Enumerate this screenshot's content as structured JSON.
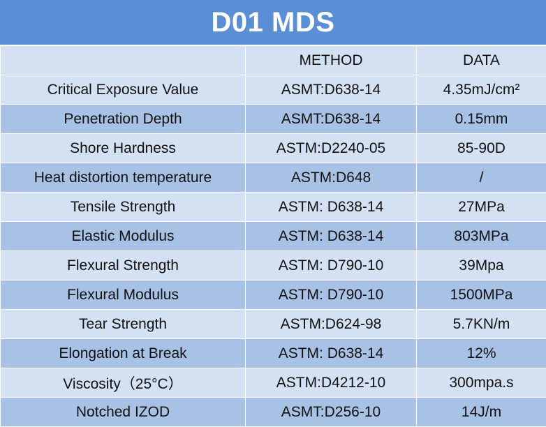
{
  "title": "D01 MDS",
  "header": {
    "property": "",
    "method": "METHOD",
    "data": "DATA"
  },
  "rows": [
    {
      "property": "Critical Exposure Value",
      "method": "ASMT:D638-14",
      "data": "4.35mJ/cm²"
    },
    {
      "property": "Penetration Depth",
      "method": "ASMT:D638-14",
      "data": "0.15mm"
    },
    {
      "property": "Shore Hardness",
      "method": "ASTM:D2240-05",
      "data": "85-90D"
    },
    {
      "property": "Heat distortion temperature",
      "method": "ASTM:D648",
      "data": "/"
    },
    {
      "property": "Tensile Strength",
      "method": "ASTM: D638-14",
      "data": "27MPa"
    },
    {
      "property": "Elastic Modulus",
      "method": "ASTM: D638-14",
      "data": "803MPa"
    },
    {
      "property": "Flexural Strength",
      "method": "ASTM: D790-10",
      "data": "39Mpa"
    },
    {
      "property": "Flexural Modulus",
      "method": "ASTM: D790-10",
      "data": "1500MPa"
    },
    {
      "property": "Tear Strength",
      "method": "ASTM:D624-98",
      "data": "5.7KN/m"
    },
    {
      "property": "Elongation at Break",
      "method": "ASTM: D638-14",
      "data": "12%"
    },
    {
      "property": "Viscosity（25°C）",
      "method": "ASTM:D4212-10",
      "data": "300mpa.s"
    },
    {
      "property": "Notched IZOD",
      "method": "ASMT:D256-10",
      "data": "14J/m"
    }
  ],
  "colors": {
    "title_bg": "#5b8fd5",
    "row_light": "#d4e1f3",
    "row_dark": "#a8c2e6"
  }
}
